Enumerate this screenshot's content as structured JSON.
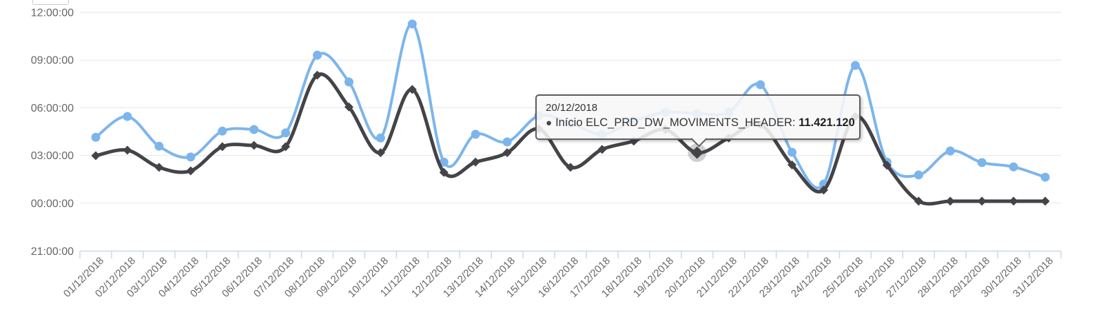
{
  "chart_data": {
    "type": "line",
    "subtype": "spline-time-series",
    "x_categories": [
      "01/12/2018",
      "02/12/2018",
      "03/12/2018",
      "04/12/2018",
      "05/12/2018",
      "06/12/2018",
      "07/12/2018",
      "08/12/2018",
      "09/12/2018",
      "10/12/2018",
      "11/12/2018",
      "12/12/2018",
      "13/12/2018",
      "14/12/2018",
      "15/12/2018",
      "16/12/2018",
      "17/12/2018",
      "18/12/2018",
      "19/12/2018",
      "20/12/2018",
      "21/12/2018",
      "22/12/2018",
      "23/12/2018",
      "24/12/2018",
      "25/12/2018",
      "26/12/2018",
      "27/12/2018",
      "28/12/2018",
      "29/12/2018",
      "30/12/2018",
      "31/12/2018"
    ],
    "y_tick_labels": [
      "12:00:00",
      "09:00:00",
      "06:00:00",
      "03:00:00",
      "00:00:00",
      "21:00:00"
    ],
    "y_ticks_hours": [
      12,
      9,
      6,
      3,
      0,
      -3
    ],
    "ylim_hours": [
      -3,
      13
    ],
    "grid": "horizontal-only",
    "legend": "none",
    "series": [
      {
        "name": "",
        "color": "#7cb5ec",
        "marker": "circle",
        "values_hours": [
          4.14,
          5.45,
          3.58,
          2.9,
          4.53,
          4.63,
          4.42,
          9.31,
          7.62,
          4.1,
          11.27,
          2.58,
          4.33,
          3.85,
          5.5,
          5.02,
          4.33,
          5.18,
          5.72,
          5.63,
          5.72,
          7.45,
          3.2,
          1.2,
          8.66,
          2.58,
          1.77,
          3.28,
          2.55,
          2.28,
          1.63
        ]
      },
      {
        "name": "Início ELC_PRD_DW_MOVIMENTS_HEADER",
        "color": "#434348",
        "marker": "diamond",
        "values_hours": [
          2.98,
          3.33,
          2.25,
          2.03,
          3.55,
          3.63,
          3.55,
          8.05,
          6.05,
          3.17,
          7.15,
          1.93,
          2.58,
          3.17,
          4.67,
          2.25,
          3.38,
          3.9,
          4.63,
          3.17,
          4.1,
          4.95,
          2.4,
          0.82,
          5.45,
          2.38,
          0.12,
          0.12,
          0.12,
          0.12,
          0.12
        ]
      }
    ],
    "hover_point": {
      "series_index": 1,
      "point_index": 19,
      "category": "20/12/2018"
    }
  },
  "tooltip": {
    "date": "20/12/2018",
    "bullet": "●",
    "series_label": "Início ELC_PRD_DW_MOVIMENTS_HEADER",
    "separator": ": ",
    "value": "11.421.120"
  },
  "colors": {
    "series_blue": "#7cb5ec",
    "series_dark": "#434348",
    "gridline": "#e6e6e6",
    "axis_line": "#ccd6eb",
    "axis_label": "#666666",
    "tooltip_border": "#5c5c61",
    "halo": "rgba(67,67,72,0.25)"
  }
}
